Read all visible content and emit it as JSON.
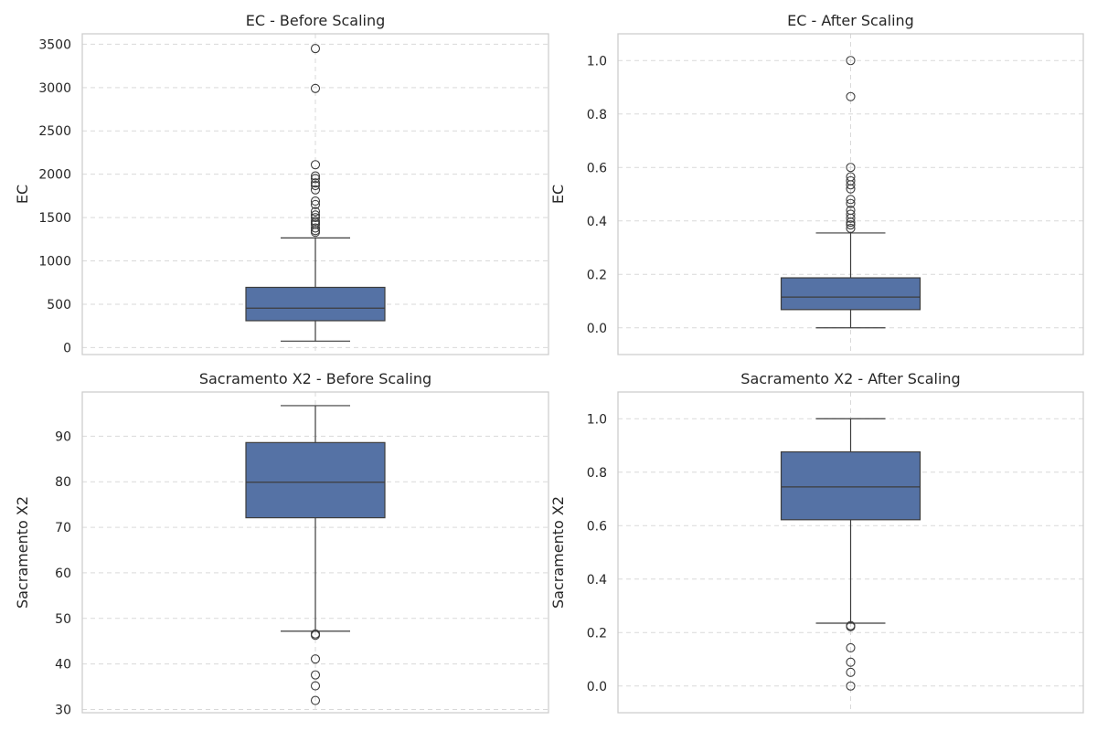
{
  "chart_data": [
    {
      "type": "box",
      "title": "EC - Before Scaling",
      "xlabel": "",
      "ylabel": "EC",
      "ylim": [
        -80,
        3620
      ],
      "yticks": [
        0,
        500,
        1000,
        1500,
        2000,
        2500,
        3000,
        3500
      ],
      "box": {
        "whisker_low": 75,
        "q1": 310,
        "median": 455,
        "q3": 695,
        "whisker_high": 1265
      },
      "outliers": [
        1330,
        1350,
        1380,
        1420,
        1440,
        1460,
        1500,
        1530,
        1570,
        1650,
        1690,
        1820,
        1870,
        1900,
        1950,
        1980,
        2110,
        2990,
        3450
      ],
      "grid": true,
      "color": "#5572a5"
    },
    {
      "type": "box",
      "title": "EC - After Scaling",
      "xlabel": "",
      "ylabel": "EC",
      "ylim": [
        -0.1,
        1.1
      ],
      "yticks": [
        0.0,
        0.2,
        0.4,
        0.6,
        0.8,
        1.0
      ],
      "box": {
        "whisker_low": 0.0,
        "q1": 0.068,
        "median": 0.115,
        "q3": 0.187,
        "whisker_high": 0.355
      },
      "outliers": [
        0.372,
        0.385,
        0.395,
        0.41,
        0.425,
        0.44,
        0.465,
        0.48,
        0.52,
        0.535,
        0.55,
        0.565,
        0.6,
        0.865,
        1.0
      ],
      "grid": true,
      "color": "#5572a5"
    },
    {
      "type": "box",
      "title": "Sacramento X2 - Before Scaling",
      "xlabel": "",
      "ylabel": "Sacramento X2",
      "ylim": [
        29.3,
        99.7
      ],
      "yticks": [
        30,
        40,
        50,
        60,
        70,
        80,
        90
      ],
      "box": {
        "whisker_low": 47.2,
        "q1": 72.1,
        "median": 79.9,
        "q3": 88.6,
        "whisker_high": 96.7
      },
      "outliers": [
        46.3,
        46.6,
        41.1,
        37.6,
        35.2,
        32.0
      ],
      "grid": true,
      "color": "#5572a5"
    },
    {
      "type": "box",
      "title": "Sacramento X2 - After Scaling",
      "xlabel": "",
      "ylabel": "Sacramento X2",
      "ylim": [
        -0.1,
        1.1
      ],
      "yticks": [
        0.0,
        0.2,
        0.4,
        0.6,
        0.8,
        1.0
      ],
      "box": {
        "whisker_low": 0.235,
        "q1": 0.622,
        "median": 0.745,
        "q3": 0.876,
        "whisker_high": 1.0
      },
      "outliers": [
        0.222,
        0.226,
        0.143,
        0.089,
        0.051,
        0.0
      ],
      "grid": true,
      "color": "#5572a5"
    }
  ]
}
